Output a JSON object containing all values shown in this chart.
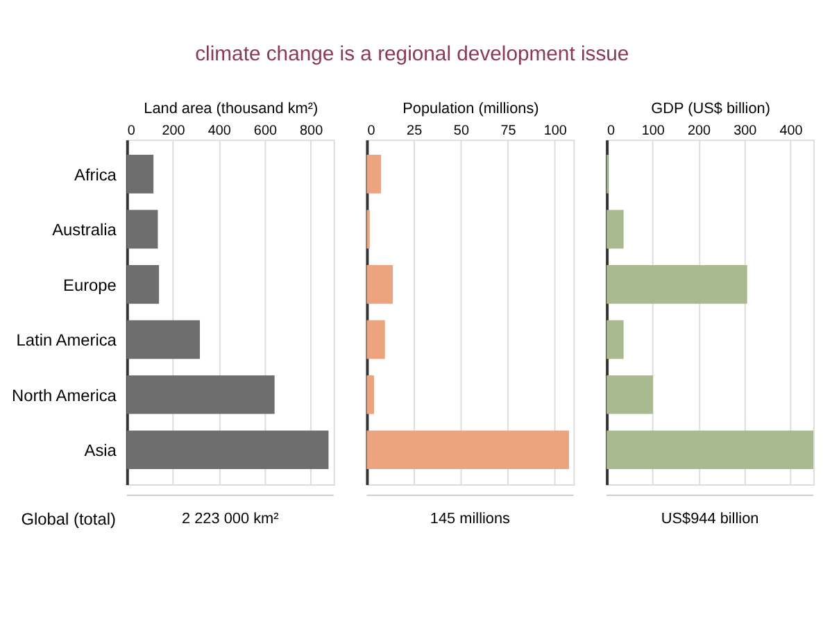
{
  "chart_data": [
    {
      "type": "bar",
      "orientation": "horizontal",
      "title": "climate change is a regional development issue",
      "xlabel": "Land area (thousand km²)",
      "categories": [
        "Africa",
        "Australia",
        "Europe",
        "Latin America",
        "North America",
        "Asia"
      ],
      "values": [
        116,
        135,
        140,
        318,
        643,
        878
      ],
      "color": "#6e6e6e",
      "xlim": [
        0,
        900
      ],
      "xticks": [
        0,
        200,
        400,
        600,
        800
      ],
      "grid": "x",
      "annotations": [
        "Global (total)",
        "2 223 000 km²"
      ]
    },
    {
      "type": "bar",
      "orientation": "horizontal",
      "xlabel": "Population (millions)",
      "categories": [
        null,
        null,
        null,
        null,
        null,
        null
      ],
      "values": [
        7.6,
        1.6,
        13.9,
        9.7,
        3.9,
        107.6
      ],
      "color": "#eba47e",
      "xlim": [
        0,
        110
      ],
      "xticks": [
        0,
        25,
        50,
        75,
        100
      ],
      "grid": "x",
      "tick_labels": "x",
      "annotations": [
        "145 millions"
      ]
    },
    {
      "type": "bar",
      "orientation": "horizontal",
      "xlabel": "GDP (US$ billion)",
      "categories": [
        null,
        null,
        null,
        null,
        null,
        null
      ],
      "values": [
        4,
        37,
        306,
        37,
        101,
        450
      ],
      "color": "#a9ba90",
      "xlim": [
        0,
        450
      ],
      "xticks": [
        0,
        100,
        200,
        300,
        400
      ],
      "grid": "x",
      "tick_labels": "x",
      "annotations": [
        "US$944 billion"
      ]
    }
  ]
}
